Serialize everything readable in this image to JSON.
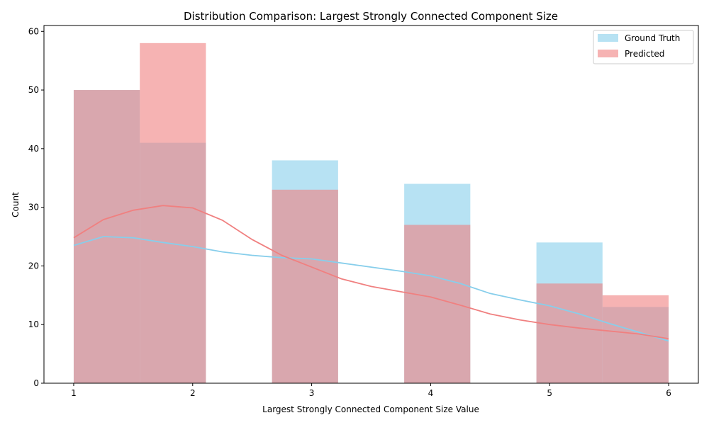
{
  "chart_data": {
    "type": "histogram",
    "title": "Distribution Comparison: Largest Strongly Connected Component Size",
    "xlabel": "Largest Strongly Connected Component Size Value",
    "ylabel": "Count",
    "xlim": [
      0.75,
      6.25
    ],
    "ylim": [
      0,
      61
    ],
    "xticks": [
      1,
      2,
      3,
      4,
      5,
      6
    ],
    "yticks": [
      0,
      10,
      20,
      30,
      40,
      50,
      60
    ],
    "bin_edges": [
      1.0,
      1.5556,
      2.1111,
      2.6667,
      3.2222,
      3.7778,
      4.3333,
      4.8889,
      5.4444,
      6.0
    ],
    "series": [
      {
        "name": "Ground Truth",
        "color": "#87ceeb",
        "bar_opacity": 0.6,
        "counts": [
          50,
          41,
          0,
          38,
          0,
          34,
          0,
          24,
          13
        ],
        "kde_x": [
          1.0,
          1.25,
          1.5,
          1.75,
          2.0,
          2.25,
          2.5,
          2.75,
          3.0,
          3.25,
          3.5,
          3.75,
          4.0,
          4.25,
          4.5,
          4.75,
          5.0,
          5.25,
          5.5,
          5.75,
          6.0
        ],
        "kde_y": [
          23.5,
          25.0,
          24.8,
          24.0,
          23.3,
          22.4,
          21.8,
          21.4,
          21.2,
          20.5,
          19.8,
          19.1,
          18.3,
          17.0,
          15.3,
          14.2,
          13.2,
          11.8,
          10.2,
          8.7,
          7.2
        ]
      },
      {
        "name": "Predicted",
        "color": "#f08080",
        "bar_opacity": 0.6,
        "counts": [
          50,
          58,
          0,
          33,
          0,
          27,
          0,
          17,
          15
        ],
        "kde_x": [
          1.0,
          1.25,
          1.5,
          1.75,
          2.0,
          2.25,
          2.5,
          2.75,
          3.0,
          3.25,
          3.5,
          3.75,
          4.0,
          4.25,
          4.5,
          4.75,
          5.0,
          5.25,
          5.5,
          5.75,
          6.0
        ],
        "kde_y": [
          24.8,
          27.9,
          29.5,
          30.3,
          29.9,
          27.8,
          24.5,
          21.8,
          19.8,
          17.8,
          16.5,
          15.6,
          14.7,
          13.3,
          11.8,
          10.8,
          10.0,
          9.4,
          8.9,
          8.4,
          7.6
        ]
      }
    ],
    "legend": "top-right"
  }
}
